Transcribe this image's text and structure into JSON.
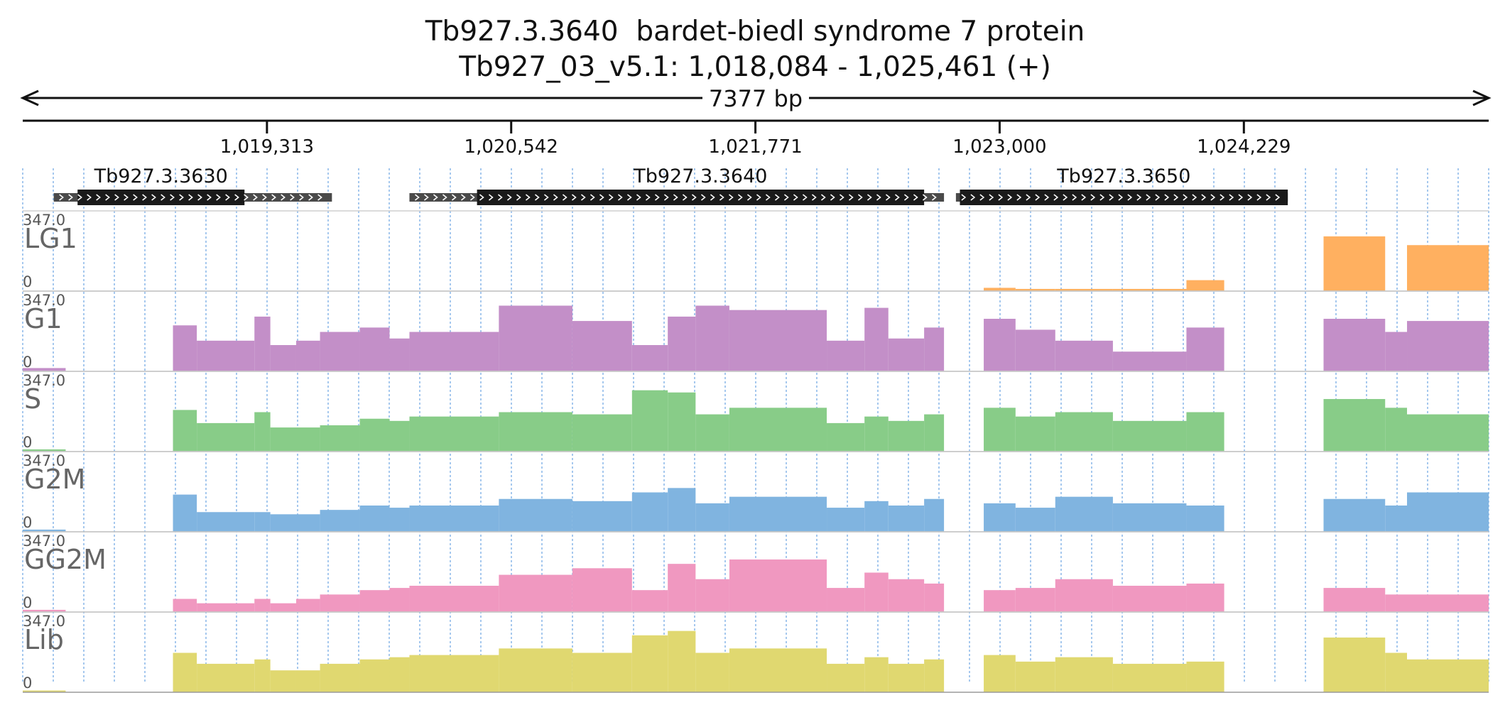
{
  "header": {
    "gene_id": "Tb927.3.3640",
    "gene_description": "bardet-biedl syndrome 7 protein",
    "location": "Tb927_03_v5.1: 1,018,084 - 1,025,461 (+)"
  },
  "chart_data": {
    "type": "area",
    "region": {
      "chromosome": "Tb927_03_v5.1",
      "start": 1018084,
      "end": 1025461,
      "strand": "+",
      "span_label": "7377 bp"
    },
    "x_ticks": [
      {
        "value": 1019313,
        "label": "1,019,313"
      },
      {
        "value": 1020542,
        "label": "1,020,542"
      },
      {
        "value": 1021771,
        "label": "1,021,771"
      },
      {
        "value": 1023000,
        "label": "1,023,000"
      },
      {
        "value": 1024229,
        "label": "1,024,229"
      }
    ],
    "genes": [
      {
        "name": "Tb927.3.3630",
        "utr_start": 1018240,
        "cds_start": 1018360,
        "cds_end": 1019200,
        "utr_end": 1019640
      },
      {
        "name": "Tb927.3.3640",
        "utr_start": 1020030,
        "cds_start": 1020370,
        "cds_end": 1022620,
        "utr_end": 1022720
      },
      {
        "name": "Tb927.3.3650",
        "utr_start": 1022780,
        "cds_start": 1022800,
        "cds_end": 1024450,
        "utr_end": 1024450
      }
    ],
    "y_range": [
      0,
      347.0
    ],
    "y_max_label": "347.0",
    "y_min_label": "0",
    "segments": [
      1018084,
      1018300,
      1018840,
      1018960,
      1019250,
      1019330,
      1019460,
      1019580,
      1019780,
      1019930,
      1020030,
      1020480,
      1020850,
      1021150,
      1021330,
      1021470,
      1021640,
      1022130,
      1022320,
      1022440,
      1022620,
      1022720,
      1022920,
      1023080,
      1023280,
      1023570,
      1023940,
      1024130,
      1024330,
      1024630,
      1024940,
      1025050,
      1025461
    ],
    "series": [
      {
        "name": "LG1",
        "color": "#ffb060",
        "values": [
          0,
          0,
          0,
          0,
          0,
          0,
          0,
          0,
          0,
          0,
          0,
          0,
          0,
          0,
          0,
          0,
          0,
          0,
          0,
          0,
          0,
          0,
          15,
          10,
          10,
          10,
          50,
          0,
          0,
          250,
          0,
          210,
          230
        ]
      },
      {
        "name": "G1",
        "color": "#c38fc8",
        "values": [
          15,
          0,
          210,
          140,
          250,
          120,
          140,
          180,
          200,
          150,
          180,
          300,
          230,
          120,
          250,
          300,
          280,
          140,
          290,
          150,
          200,
          0,
          240,
          190,
          140,
          90,
          200,
          0,
          0,
          240,
          180,
          230,
          220
        ]
      },
      {
        "name": "S",
        "color": "#88cc88",
        "values": [
          10,
          0,
          190,
          130,
          180,
          110,
          110,
          120,
          150,
          140,
          160,
          180,
          170,
          280,
          270,
          170,
          200,
          130,
          160,
          140,
          170,
          0,
          200,
          160,
          180,
          140,
          180,
          0,
          0,
          240,
          200,
          170,
          190
        ]
      },
      {
        "name": "G2M",
        "color": "#80b4e0",
        "values": [
          10,
          0,
          170,
          90,
          90,
          80,
          80,
          100,
          120,
          110,
          120,
          150,
          140,
          180,
          200,
          130,
          160,
          110,
          140,
          120,
          150,
          0,
          130,
          110,
          160,
          130,
          120,
          0,
          0,
          150,
          120,
          180,
          160
        ]
      },
      {
        "name": "GG2M",
        "color": "#f098c0",
        "values": [
          10,
          0,
          60,
          40,
          60,
          40,
          60,
          80,
          100,
          110,
          120,
          170,
          200,
          100,
          220,
          150,
          240,
          110,
          180,
          150,
          130,
          0,
          100,
          110,
          150,
          120,
          130,
          0,
          0,
          110,
          80,
          80,
          70
        ]
      },
      {
        "name": "Lib",
        "color": "#e0d870",
        "values": [
          8,
          0,
          180,
          130,
          150,
          100,
          100,
          130,
          150,
          160,
          170,
          200,
          180,
          260,
          280,
          180,
          200,
          130,
          160,
          130,
          150,
          0,
          170,
          140,
          160,
          130,
          140,
          0,
          0,
          250,
          180,
          150,
          140
        ]
      }
    ]
  }
}
